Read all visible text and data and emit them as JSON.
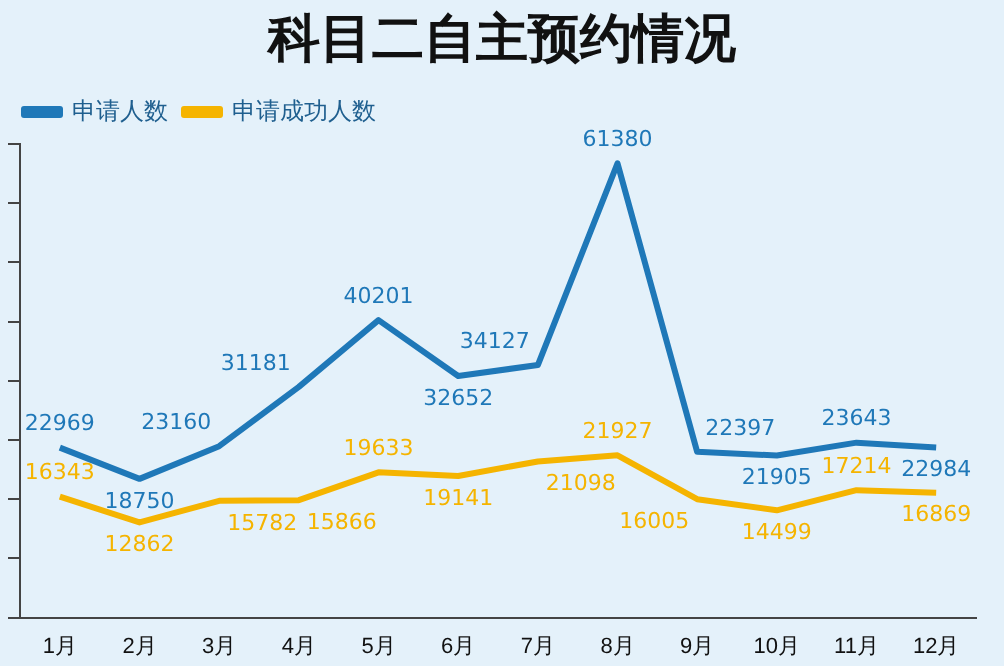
{
  "chart_data": {
    "type": "line",
    "title": "科目二自主预约情况",
    "categories": [
      "1月",
      "2月",
      "3月",
      "4月",
      "5月",
      "6月",
      "7月",
      "8月",
      "9月",
      "10月",
      "11月",
      "12月"
    ],
    "series": [
      {
        "name": "申请人数",
        "color": "#1f78b8",
        "values": [
          22969,
          18750,
          23160,
          31181,
          40201,
          32652,
          34127,
          61380,
          22397,
          21905,
          23643,
          22984
        ]
      },
      {
        "name": "申请成功人数",
        "color": "#f5b400",
        "values": [
          16343,
          12862,
          15782,
          15866,
          19633,
          19141,
          21098,
          21927,
          16005,
          14499,
          17214,
          16869
        ]
      }
    ],
    "ylim": [
      0,
      64000
    ],
    "yticks": [
      {
        "value": 0,
        "label": null
      },
      {
        "value": 8000,
        "label": null
      },
      {
        "value": 16000,
        "label": null
      },
      {
        "value": 24000,
        "label": null
      },
      {
        "value": 32000,
        "label": null
      },
      {
        "value": 40000,
        "label": null
      },
      {
        "value": 48000,
        "label": null
      },
      {
        "value": 56000,
        "label": null
      },
      {
        "value": 64000,
        "label": null
      }
    ],
    "tick_labels": "x",
    "grid": false,
    "legend": "top left",
    "marker": "none",
    "line_style": "solid",
    "data_labels": true
  }
}
